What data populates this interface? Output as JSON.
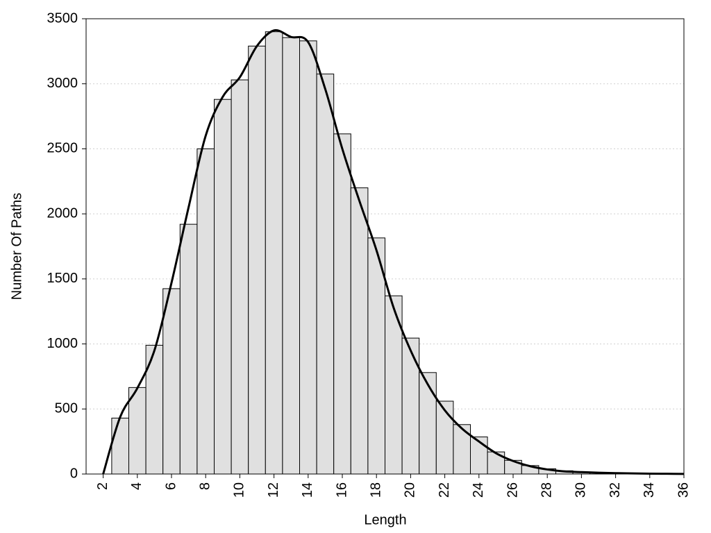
{
  "chart_data": {
    "type": "histogram",
    "x_label": "Length",
    "y_label": "Number Of Paths",
    "bins": [
      2.5,
      3.5,
      4.5,
      5.5,
      6.5,
      7.5,
      8.5,
      9.5,
      10.5,
      11.5,
      12.5,
      13.5,
      14.5,
      15.5,
      16.5,
      17.5,
      18.5,
      19.5,
      20.5,
      21.5,
      22.5,
      23.5,
      24.5,
      25.5,
      26.5,
      27.5,
      28.5,
      29.5,
      30.5,
      31.5,
      32.5,
      33.5,
      34.5,
      35.5
    ],
    "values": [
      430,
      665,
      990,
      1425,
      1920,
      2500,
      2880,
      3030,
      3290,
      3400,
      3355,
      3330,
      3075,
      2615,
      2200,
      1815,
      1370,
      1045,
      780,
      560,
      380,
      285,
      170,
      105,
      65,
      40,
      25,
      15,
      12,
      8,
      5,
      3,
      2
    ],
    "color": "#e0e0e0",
    "curve": {
      "type": "line",
      "color": "#000000",
      "x": [
        2,
        3,
        4,
        5,
        6,
        7,
        8,
        9,
        10,
        11,
        12,
        13,
        14,
        15,
        16,
        17,
        18,
        19,
        20,
        21,
        22,
        23,
        24,
        25,
        26,
        27,
        28,
        29,
        30,
        31,
        32,
        33,
        34,
        35,
        36
      ],
      "values": [
        0,
        440,
        660,
        950,
        1470,
        2050,
        2600,
        2900,
        3050,
        3290,
        3410,
        3360,
        3320,
        2960,
        2500,
        2100,
        1720,
        1280,
        950,
        690,
        490,
        350,
        250,
        160,
        100,
        60,
        35,
        20,
        15,
        10,
        7,
        5,
        3,
        2,
        1
      ]
    },
    "xlim": [
      1,
      36
    ],
    "xticks": [
      2,
      4,
      6,
      8,
      10,
      12,
      14,
      16,
      18,
      20,
      22,
      24,
      26,
      28,
      30,
      32,
      34,
      36
    ],
    "ylim": [
      0,
      3500
    ],
    "yticks": [
      0,
      500,
      1000,
      1500,
      2000,
      2500,
      3000,
      3500
    ],
    "grid": true
  }
}
